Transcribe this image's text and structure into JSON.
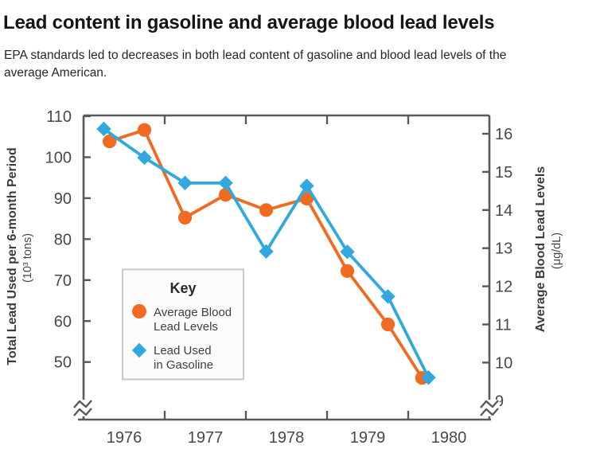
{
  "header": {
    "title": "Lead content in gasoline and average blood lead levels",
    "subtitle_line1": "EPA standards led to decreases in both lead content of gasoline and blood lead levels of the",
    "subtitle_line2": "average American."
  },
  "chart_data": {
    "type": "line",
    "title": "Lead content in gasoline and average blood lead levels",
    "x_axis": {
      "range": [
        1976,
        1981
      ],
      "boundary_ticks": [
        1977,
        1978,
        1979,
        1980
      ],
      "year_labels": [
        {
          "text": "1976",
          "center": 1976.5
        },
        {
          "text": "1977",
          "center": 1977.5
        },
        {
          "text": "1978",
          "center": 1978.5
        },
        {
          "text": "1979",
          "center": 1979.5
        },
        {
          "text": "1980",
          "center": 1980.5
        }
      ],
      "axis_break_at_ends": true
    },
    "left_axis": {
      "label": "Total Lead Used per 6-month Period",
      "sublabel": "(10³ tons)",
      "ticks": [
        110,
        100,
        90,
        80,
        70,
        60,
        50
      ],
      "top_value": 110,
      "break": true
    },
    "right_axis": {
      "label": "Average Blood Lead Levels",
      "sublabel": "(μg/dL)",
      "ticks": [
        16,
        15,
        14,
        13,
        12,
        11,
        10,
        9
      ],
      "break": true
    },
    "series": [
      {
        "id": "blood-lead",
        "name": "Average Blood Lead Levels",
        "axis": "right",
        "marker": "circle",
        "color": "#F06A21",
        "x": [
          1976.32,
          1976.75,
          1977.25,
          1977.75,
          1978.25,
          1978.75,
          1979.25,
          1979.75,
          1980.17
        ],
        "y": [
          15.8,
          16.1,
          13.8,
          14.4,
          14.0,
          14.3,
          12.4,
          11.0,
          9.6
        ]
      },
      {
        "id": "lead-used",
        "name": "Lead Used in Gasoline",
        "axis": "left",
        "marker": "diamond",
        "color": "#32A8E0",
        "x": [
          1976.25,
          1976.75,
          1977.25,
          1977.75,
          1978.25,
          1978.75,
          1979.25,
          1979.75,
          1980.25
        ],
        "y": [
          106.9,
          99.9,
          93.7,
          93.7,
          77.0,
          93.0,
          76.9,
          66.0,
          46.2
        ]
      }
    ],
    "legend": {
      "title": "Key",
      "items": [
        {
          "series_id": "blood-lead",
          "lines": [
            "Average Blood",
            "Lead Levels"
          ]
        },
        {
          "series_id": "lead-used",
          "lines": [
            "Lead Used",
            "in Gasoline"
          ]
        }
      ],
      "position": "inside-lower-left"
    },
    "colors": {
      "axis": "#58595B",
      "tick_text": "#48484A",
      "blood_lead_orange": "#F06A21",
      "lead_used_blue": "#32A8E0",
      "legend_border": "#C9C9C9",
      "legend_bg": "#FCFCFC"
    }
  }
}
